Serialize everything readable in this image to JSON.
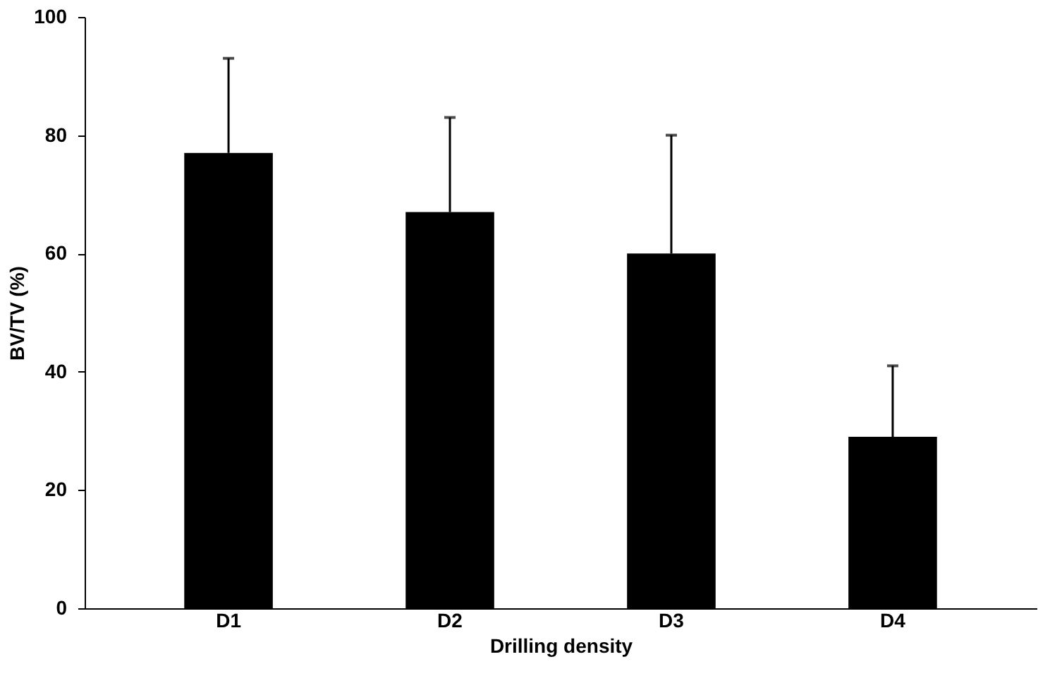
{
  "chart_data": {
    "type": "bar",
    "xlabel": "Drilling density",
    "ylabel": "BV/TV (%)",
    "categories": [
      "D1",
      "D2",
      "D3",
      "D4"
    ],
    "values": [
      77,
      67,
      60,
      29
    ],
    "errors": [
      [
        77,
        93
      ],
      [
        67,
        83
      ],
      [
        60,
        80
      ],
      [
        29,
        41
      ]
    ],
    "color": "#000000",
    "ylim": [
      0,
      100
    ],
    "yticks": [
      0,
      20,
      40,
      60,
      80,
      100
    ],
    "grid": false
  }
}
